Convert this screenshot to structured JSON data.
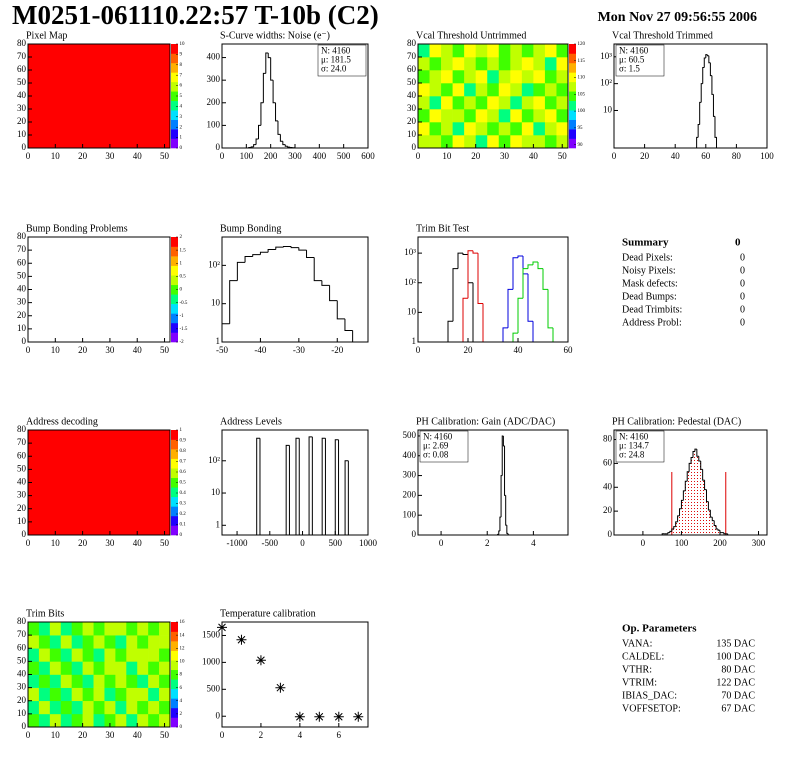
{
  "header": {
    "title": "M0251-061110.22:57 T-10b (C2)",
    "date": "Mon Nov 27 09:56:55 2006"
  },
  "palette": [
    "#8000ff",
    "#2000ff",
    "#0080ff",
    "#00e0ff",
    "#00ff80",
    "#40ff00",
    "#c0ff00",
    "#ffff00",
    "#ffb000",
    "#ff6000",
    "#ff0000"
  ],
  "chart_data": [
    {
      "type": "heatmap",
      "title": "Pixel Map",
      "values": [
        [
          10
        ]
      ],
      "xlim": [
        0,
        52
      ],
      "xticks": [
        0,
        10,
        20,
        30,
        40,
        50
      ],
      "ylim": [
        0,
        80
      ],
      "yticks": [
        0,
        10,
        20,
        30,
        40,
        50,
        60,
        70,
        80
      ],
      "zlim": [
        0,
        10
      ],
      "zticks": [
        0,
        1,
        2,
        3,
        4,
        5,
        6,
        7,
        8,
        9,
        10
      ]
    },
    {
      "type": "histogram",
      "title": "S-Curve widths: Noise (e⁻)",
      "color": "#000000",
      "bins": [
        110,
        120,
        130,
        140,
        150,
        160,
        170,
        180,
        190,
        200,
        210,
        220,
        230,
        240,
        250,
        260,
        270,
        280,
        290,
        300
      ],
      "values": [
        2,
        5,
        15,
        40,
        100,
        200,
        330,
        420,
        400,
        300,
        200,
        120,
        60,
        30,
        15,
        8,
        4,
        2,
        1
      ],
      "xlim": [
        0,
        600
      ],
      "xticks": [
        0,
        100,
        200,
        300,
        400,
        500,
        600
      ],
      "ylim": [
        0,
        460
      ],
      "yticks": [
        0,
        100,
        200,
        300,
        400
      ],
      "stats": [
        "N: 4160",
        "μ: 181.5",
        "σ: 24.0"
      ],
      "stats_position": "right"
    },
    {
      "type": "heatmap",
      "title": "Vcal Threshold Untrimmed",
      "values": [
        [
          106,
          108,
          104,
          110,
          107,
          103,
          109,
          105,
          111,
          106,
          108,
          104,
          107
        ],
        [
          109,
          105,
          107,
          103,
          110,
          106,
          104,
          108,
          105,
          109,
          103,
          107,
          110
        ],
        [
          104,
          110,
          106,
          108,
          105,
          111,
          107,
          103,
          109,
          104,
          106,
          110,
          105
        ],
        [
          107,
          103,
          109,
          105,
          108,
          104,
          110,
          106,
          102,
          108,
          111,
          105,
          108
        ],
        [
          110,
          106,
          105,
          109,
          103,
          107,
          105,
          109,
          107,
          103,
          105,
          108,
          104
        ],
        [
          105,
          108,
          111,
          104,
          106,
          109,
          103,
          107,
          110,
          106,
          109,
          104,
          106
        ],
        [
          108,
          104,
          106,
          110,
          107,
          105,
          108,
          104,
          106,
          111,
          107,
          103,
          109
        ],
        [
          103,
          109,
          107,
          105,
          111,
          106,
          110,
          105,
          108,
          104,
          106,
          109,
          105
        ]
      ],
      "xlim": [
        0,
        52
      ],
      "xticks": [
        0,
        10,
        20,
        30,
        40,
        50
      ],
      "ylim": [
        0,
        80
      ],
      "yticks": [
        0,
        10,
        20,
        30,
        40,
        50,
        60,
        70,
        80
      ],
      "zlim": [
        89,
        120
      ],
      "zticks": [
        90,
        95,
        100,
        105,
        110,
        115,
        120
      ]
    },
    {
      "type": "histogram",
      "title": "Vcal Threshold Trimmed",
      "color": "#000000",
      "log_y": true,
      "bins": [
        54,
        55,
        56,
        57,
        58,
        59,
        60,
        61,
        62,
        63,
        64,
        65,
        66,
        67
      ],
      "values": [
        1,
        3,
        20,
        100,
        400,
        900,
        1200,
        1100,
        600,
        200,
        40,
        6,
        1
      ],
      "xlim": [
        0,
        100
      ],
      "xticks": [
        0,
        20,
        40,
        60,
        80,
        100
      ],
      "ylim": [
        0.4,
        3000
      ],
      "yticks": [
        10,
        {
          "value": 100,
          "label": "10²"
        },
        {
          "value": 1000,
          "label": "10³"
        }
      ],
      "stats": [
        "N: 4160",
        "μ: 60.5",
        "σ:  1.5"
      ],
      "stats_position": "left"
    },
    {
      "type": "heatmap",
      "title": "Bump Bonding Problems",
      "values": [],
      "xlim": [
        0,
        52
      ],
      "xticks": [
        0,
        10,
        20,
        30,
        40,
        50
      ],
      "ylim": [
        0,
        80
      ],
      "yticks": [
        0,
        10,
        20,
        30,
        40,
        50,
        60,
        70,
        80
      ],
      "zlim": [
        -2,
        2
      ],
      "zticks": [
        -2,
        -1.5,
        -1,
        -0.5,
        0,
        0.5,
        1,
        1.5,
        2
      ]
    },
    {
      "type": "histogram",
      "title": "Bump Bonding",
      "color": "#000000",
      "log_y": true,
      "bins": [
        -50,
        -48,
        -46,
        -44,
        -42,
        -40,
        -38,
        -36,
        -34,
        -32,
        -30,
        -28,
        -26,
        -24,
        -22,
        -20,
        -18,
        -16,
        -14
      ],
      "values": [
        3,
        40,
        120,
        170,
        190,
        220,
        260,
        300,
        310,
        290,
        250,
        160,
        40,
        30,
        12,
        4,
        2,
        1
      ],
      "xlim": [
        -50,
        -12
      ],
      "xticks": [
        -50,
        -40,
        -30,
        -20
      ],
      "ylim": [
        1,
        550
      ],
      "yticks": [
        1,
        10,
        {
          "value": 100,
          "label": "10²"
        }
      ]
    },
    {
      "type": "histogram",
      "title": "Trim Bit Test",
      "log_y": true,
      "bins": [
        12,
        14,
        16,
        18,
        20,
        22,
        24,
        26,
        28,
        30,
        32,
        34,
        36,
        38,
        40,
        42,
        44,
        46,
        48,
        50,
        52,
        54,
        56
      ],
      "series": [
        {
          "color": "#000000",
          "values": [
            5,
            300,
            1000,
            900,
            100,
            0,
            0,
            0,
            0,
            0,
            0,
            0,
            0,
            0,
            0,
            0,
            0,
            0,
            0,
            0,
            0,
            0
          ]
        },
        {
          "color": "#dd0000",
          "values": [
            0,
            0,
            0,
            30,
            1200,
            1000,
            20,
            0,
            0,
            0,
            0,
            0,
            0,
            0,
            0,
            0,
            0,
            0,
            0,
            0,
            0,
            0
          ]
        },
        {
          "color": "#0000dd",
          "values": [
            0,
            0,
            0,
            0,
            0,
            0,
            0,
            0,
            0,
            0,
            0,
            3,
            60,
            700,
            800,
            200,
            5,
            0,
            0,
            0,
            0,
            0
          ]
        },
        {
          "color": "#00cc00",
          "values": [
            0,
            0,
            0,
            0,
            0,
            0,
            0,
            0,
            0,
            0,
            0,
            0,
            0,
            2,
            30,
            300,
            400,
            500,
            300,
            60,
            3,
            0
          ]
        }
      ],
      "xlim": [
        0,
        60
      ],
      "xticks": [
        0,
        20,
        40,
        60
      ],
      "ylim": [
        1,
        3500
      ],
      "yticks": [
        1,
        10,
        {
          "value": 100,
          "label": "10²"
        },
        {
          "value": 1000,
          "label": "10³"
        }
      ]
    },
    {
      "type": "heatmap",
      "title": "Address decoding",
      "values": [
        [
          1
        ]
      ],
      "xlim": [
        0,
        52
      ],
      "xticks": [
        0,
        10,
        20,
        30,
        40,
        50
      ],
      "ylim": [
        0,
        80
      ],
      "yticks": [
        0,
        10,
        20,
        30,
        40,
        50,
        60,
        70,
        80
      ],
      "zlim": [
        0,
        1
      ],
      "zticks": [
        0,
        0.1,
        0.2,
        0.3,
        0.4,
        0.5,
        0.6,
        0.7,
        0.8,
        0.9,
        1
      ]
    },
    {
      "type": "histogram",
      "title": "Address Levels",
      "color": "#000000",
      "log_y": true,
      "bins": [
        -750,
        -700,
        -650,
        -600,
        -550,
        -500,
        -450,
        -400,
        -350,
        -300,
        -250,
        -200,
        -150,
        -100,
        -50,
        0,
        50,
        100,
        150,
        200,
        250,
        300,
        350,
        400,
        450,
        500,
        550,
        600,
        650,
        700,
        750
      ],
      "values": [
        0,
        500,
        0,
        0,
        0,
        0,
        0,
        0,
        0,
        0,
        300,
        0,
        0,
        500,
        0,
        0,
        0,
        550,
        0,
        0,
        0,
        500,
        0,
        0,
        0,
        450,
        0,
        0,
        100,
        0
      ],
      "xlim": [
        -1230,
        1000
      ],
      "xticks": [
        -1000,
        -500,
        0,
        500,
        1000
      ],
      "ylim": [
        0.5,
        900
      ],
      "yticks": [
        1,
        10,
        {
          "value": 100,
          "label": "10²"
        }
      ]
    },
    {
      "type": "histogram",
      "title": "PH Calibration: Gain (ADC/DAC)",
      "color": "#000000",
      "bins": [
        2.4,
        2.45,
        2.5,
        2.55,
        2.6,
        2.65,
        2.7,
        2.75,
        2.8,
        2.85,
        2.9,
        2.95,
        3.0
      ],
      "values": [
        0,
        3,
        20,
        90,
        300,
        500,
        450,
        200,
        50,
        8,
        1,
        0
      ],
      "xlim": [
        -1,
        5.5
      ],
      "xticks": [
        0,
        2,
        4
      ],
      "ylim": [
        0,
        530
      ],
      "yticks": [
        0,
        100,
        200,
        300,
        400,
        500
      ],
      "stats": [
        "N: 4160",
        "μ: 2.69",
        "σ: 0.08"
      ],
      "stats_position": "left"
    },
    {
      "type": "histogram",
      "title": "PH Calibration: Pedestal (DAC)",
      "color": "#000000",
      "bins": [
        50,
        55,
        60,
        65,
        70,
        75,
        80,
        85,
        90,
        95,
        100,
        105,
        110,
        115,
        120,
        125,
        130,
        135,
        140,
        145,
        150,
        155,
        160,
        165,
        170,
        175,
        180,
        185,
        190,
        195,
        200,
        205,
        210,
        215,
        220,
        225
      ],
      "values": [
        1,
        1,
        1,
        2,
        3,
        5,
        7,
        11,
        16,
        22,
        29,
        37,
        45,
        53,
        60,
        65,
        70,
        72,
        66,
        62,
        55,
        46,
        38,
        28,
        21,
        15,
        12,
        8,
        5,
        4,
        2,
        2,
        1,
        1,
        0
      ],
      "xlim": [
        -75,
        322
      ],
      "xticks": [
        0,
        100,
        200,
        300
      ],
      "ylim": [
        0,
        88
      ],
      "yticks": [
        0,
        20,
        40,
        60,
        80
      ],
      "stats": [
        "N: 4160",
        "μ: 134.7",
        "σ: 24.8"
      ],
      "stats_colors": [
        "#000000",
        "#dd0000",
        "#dd0000"
      ],
      "stats_position": "left",
      "fit_range": [
        75,
        215
      ],
      "fit_color": "#dd0000"
    },
    {
      "type": "heatmap",
      "title": "Trim Bits",
      "values": [
        [
          8,
          7,
          9,
          6,
          8,
          10,
          7,
          8,
          9,
          7,
          10,
          8,
          9
        ],
        [
          7,
          9,
          6,
          8,
          7,
          9,
          8,
          10,
          7,
          9,
          8,
          10,
          8
        ],
        [
          9,
          6,
          8,
          7,
          10,
          8,
          9,
          7,
          8,
          10,
          9,
          7,
          10
        ],
        [
          6,
          8,
          7,
          9,
          8,
          7,
          10,
          8,
          9,
          8,
          7,
          9,
          8
        ],
        [
          8,
          7,
          9,
          8,
          6,
          9,
          8,
          9,
          10,
          7,
          9,
          8,
          10
        ],
        [
          7,
          9,
          8,
          6,
          9,
          8,
          7,
          10,
          8,
          9,
          10,
          9,
          8
        ],
        [
          9,
          8,
          6,
          9,
          7,
          8,
          9,
          8,
          7,
          10,
          8,
          10,
          9
        ],
        [
          8,
          6,
          9,
          7,
          8,
          10,
          8,
          9,
          10,
          8,
          9,
          8,
          10
        ]
      ],
      "xlim": [
        0,
        52
      ],
      "xticks": [
        0,
        10,
        20,
        30,
        40,
        50
      ],
      "ylim": [
        0,
        80
      ],
      "yticks": [
        0,
        10,
        20,
        30,
        40,
        50,
        60,
        70,
        80
      ],
      "zlim": [
        0,
        16
      ],
      "zticks": [
        0,
        2,
        4,
        6,
        8,
        10,
        12,
        14,
        16
      ]
    },
    {
      "type": "scatter",
      "title": "Temperature calibration",
      "color": "#000000",
      "marker": "star",
      "x": [
        0,
        1,
        2,
        3,
        4,
        5,
        6,
        7
      ],
      "values": [
        1650,
        1420,
        1040,
        530,
        -10,
        -10,
        -10,
        -10
      ],
      "xlim": [
        0,
        7.5
      ],
      "xticks": [
        0,
        2,
        4,
        6
      ],
      "ylim": [
        -200,
        1750
      ],
      "yticks": [
        0,
        500,
        1000,
        1500
      ]
    }
  ],
  "summary": {
    "title": "Summary",
    "total": 0,
    "rows": [
      {
        "label": "Dead Pixels:",
        "value": 0
      },
      {
        "label": "Noisy Pixels:",
        "value": 0
      },
      {
        "label": "Mask defects:",
        "value": 0
      },
      {
        "label": "Dead Bumps:",
        "value": 0
      },
      {
        "label": "Dead Trimbits:",
        "value": 0
      },
      {
        "label": "Address Probl:",
        "value": 0
      }
    ]
  },
  "op_parameters": {
    "title": "Op. Parameters",
    "rows": [
      {
        "label": "VANA:",
        "value": "135 DAC"
      },
      {
        "label": "CALDEL:",
        "value": "100 DAC"
      },
      {
        "label": "VTHR:",
        "value": "80 DAC"
      },
      {
        "label": "VTRIM:",
        "value": "122 DAC"
      },
      {
        "label": "IBIAS_DAC:",
        "value": "70 DAC"
      },
      {
        "label": "VOFFSETOP:",
        "value": "67 DAC"
      }
    ]
  }
}
